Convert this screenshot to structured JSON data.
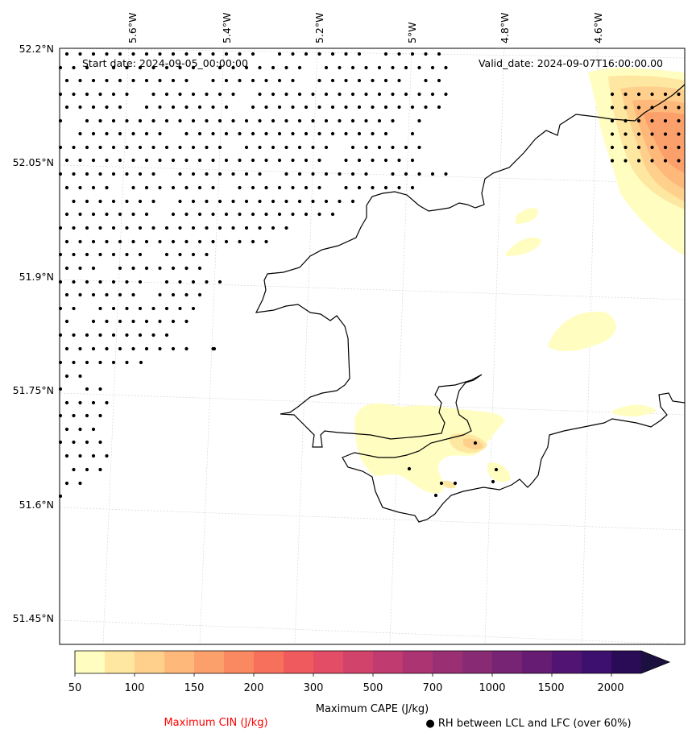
{
  "header": {
    "start_label": "Start date: 2024-09-05_00:00:00",
    "valid_label": "Valid_date: 2024-09-07T16:00:00.00"
  },
  "axes": {
    "lon_labels": [
      "5.6°W",
      "5.4°W",
      "5.2°W",
      "5°W",
      "4.8°W",
      "4.6°W"
    ],
    "lat_labels": [
      "52.2°N",
      "52.05°N",
      "51.9°N",
      "51.75°N",
      "51.6°N",
      "51.45°N"
    ]
  },
  "colorbar": {
    "title": "Maximum CAPE (J/kg)",
    "tick_labels": [
      "50",
      "100",
      "150",
      "200",
      "300",
      "500",
      "700",
      "1000",
      "1500",
      "2000"
    ],
    "colors": [
      "#fffdbf",
      "#fee7a0",
      "#fed08c",
      "#feb87a",
      "#fca06b",
      "#fa8860",
      "#f7705c",
      "#ef5a5e",
      "#e34d65",
      "#d2436b",
      "#c03b70",
      "#ad3472",
      "#9b2f73",
      "#892b74",
      "#772474",
      "#651c72",
      "#521472",
      "#3d0f6e",
      "#2a0b55",
      "#1c1040"
    ]
  },
  "legend": {
    "cin_label": "Maximum CIN (J/kg)",
    "rh_label": "● RH between LCL and LFC (over 60%)"
  },
  "colors": {
    "cin_text": "#ff0000",
    "coast": "#000000",
    "grid": "#cccccc"
  }
}
